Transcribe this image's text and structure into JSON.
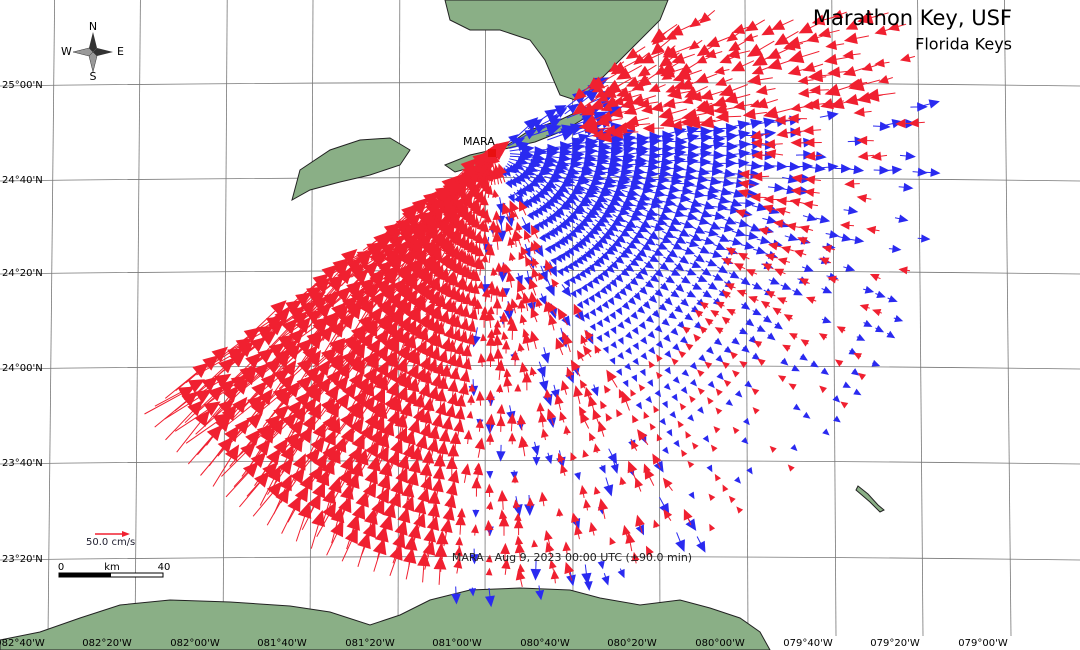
{
  "header": {
    "title": "Marathon Key, USF",
    "subtitle": "Florida Keys"
  },
  "station": {
    "label": "MARA"
  },
  "compass": {
    "n": "N",
    "s": "S",
    "e": "E",
    "w": "W"
  },
  "legend": {
    "scale_label": "50.0 cm/s",
    "km_min": 0,
    "km_unit": "km",
    "km_max": 40
  },
  "caption": "MARA - Aug 9, 2023 00:00 UTC (±90.0 min)",
  "lat_labels": [
    "25°00'N",
    "24°40'N",
    "24°20'N",
    "24°00'N",
    "23°40'N",
    "23°20'N"
  ],
  "lon_labels": [
    "082°40'W",
    "082°20'W",
    "082°00'W",
    "081°40'W",
    "081°20'W",
    "081°00'W",
    "080°40'W",
    "080°20'W",
    "080°00'W",
    "079°40'W",
    "079°20'W",
    "079°00'W"
  ]
}
